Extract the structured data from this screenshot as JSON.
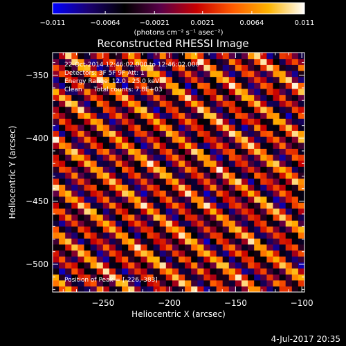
{
  "chart_data": {
    "type": "heatmap",
    "title": "Reconstructed RHESSI Image",
    "xlabel": "Heliocentric X (arcsec)",
    "ylabel": "Heliocentric Y (arcsec)",
    "xlim": [
      -288,
      -98
    ],
    "ylim": [
      -522,
      -332
    ],
    "x_ticks": [
      -250,
      -200,
      -150,
      -100
    ],
    "x_tick_labels": [
      "−250",
      "−200",
      "−150",
      "−100"
    ],
    "y_ticks": [
      -350,
      -400,
      -450,
      -500
    ],
    "y_tick_labels": [
      "−350",
      "−400",
      "−450",
      "−500"
    ],
    "colorbar": {
      "min": -0.011,
      "max": 0.011,
      "ticks": [
        -0.011,
        -0.0064,
        -0.0021,
        0.0021,
        0.0064,
        0.011
      ],
      "tick_labels": [
        "−0.011",
        "−0.0064",
        "−0.0021",
        "0.0021",
        "0.0064",
        "0.011"
      ],
      "unit_label": "(photons cm⁻² s⁻¹ asec⁻²)",
      "colors": [
        "#0000ff",
        "#1a0070",
        "#000000",
        "#5a0048",
        "#c80000",
        "#ff5a00",
        "#ffb400",
        "#ffffff"
      ]
    },
    "grid": {
      "nx": 40,
      "ny": 40,
      "stripe_period_arcsec": 14.5
    },
    "annotations": [
      "22-Oct-2014 12:46:02.000 to 12:46:02.000",
      "Detectors: 3F 5F 9F Att: 1",
      "Energy Range: 12.0 - 25.0 keV",
      "Clean      Total counts: 7.8E+03"
    ],
    "peak_label": "Position of Peak = [-226,-383]"
  },
  "timestamp": "4-Jul-2017 20:35"
}
